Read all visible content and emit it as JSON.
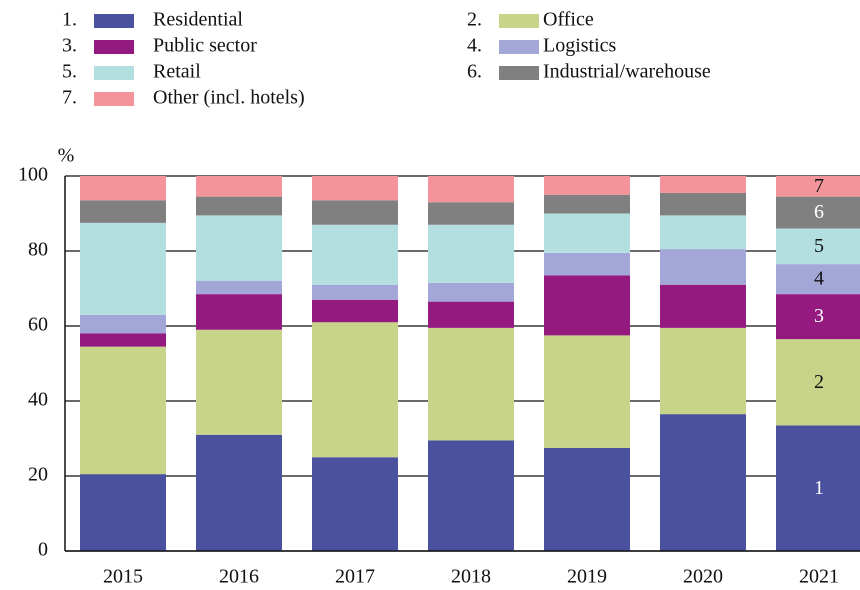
{
  "chart_data": {
    "type": "stacked_bar",
    "y_label": "%",
    "categories": [
      "2015",
      "2016",
      "2017",
      "2018",
      "2019",
      "2020",
      "2021"
    ],
    "series": [
      {
        "name": "Residential",
        "color": "#4a52a0",
        "values": [
          20.5,
          31,
          25,
          29.5,
          27.5,
          36.5,
          33.5
        ]
      },
      {
        "name": "Office",
        "color": "#c8d489",
        "values": [
          34,
          28,
          36,
          30,
          30,
          23,
          23
        ]
      },
      {
        "name": "Public sector",
        "color": "#951a7f",
        "values": [
          3.5,
          9.5,
          6,
          7,
          16,
          11.5,
          12
        ]
      },
      {
        "name": "Logistics",
        "color": "#a3a7d7",
        "values": [
          5,
          3.5,
          4,
          5,
          6,
          9.5,
          8
        ]
      },
      {
        "name": "Retail",
        "color": "#b4dfe0",
        "values": [
          24.5,
          17.5,
          16,
          15.5,
          10.5,
          9,
          9.5
        ]
      },
      {
        "name": "Industrial/warehouse",
        "color": "#808080",
        "values": [
          6,
          5,
          6.5,
          6,
          5,
          6,
          8.5
        ]
      },
      {
        "name": "Other (incl. hotels)",
        "color": "#f2949a",
        "values": [
          6.5,
          5.5,
          6.5,
          7,
          5,
          4.5,
          5.5
        ]
      }
    ],
    "legend_numbers": [
      "1.",
      "2.",
      "3.",
      "4.",
      "5.",
      "6.",
      "7."
    ],
    "segment_labels": [
      "1",
      "2",
      "3",
      "4",
      "5",
      "6",
      "7"
    ],
    "ylim": [
      0,
      100
    ],
    "yticks": [
      0,
      20,
      40,
      60,
      80,
      100
    ],
    "grid": true
  }
}
